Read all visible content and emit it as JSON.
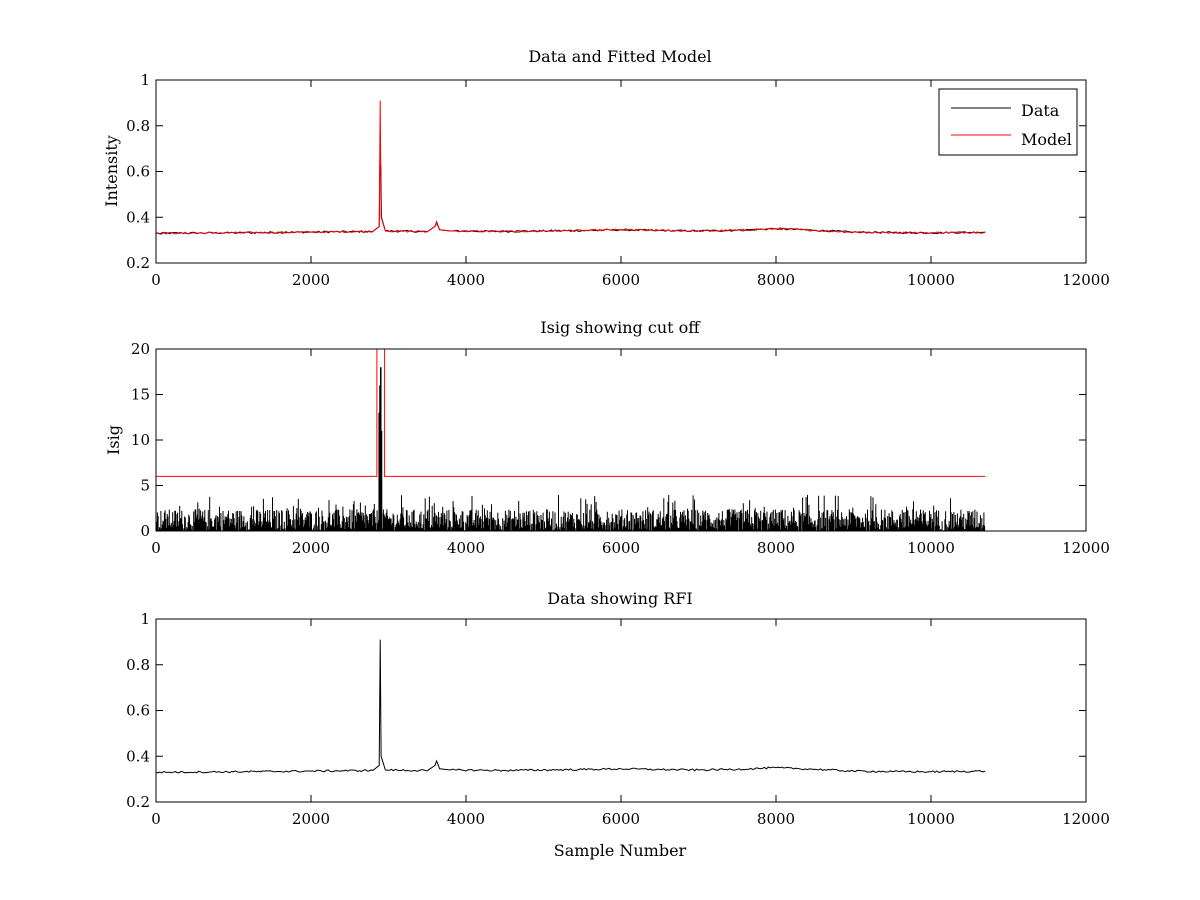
{
  "colors": {
    "data": "#000000",
    "model": "#ff0000",
    "background": "#ffffff"
  },
  "chart_data": [
    {
      "type": "line",
      "title": "Data and Fitted Model",
      "xlabel": "",
      "ylabel": "Intensity",
      "xlim": [
        0,
        12000
      ],
      "ylim": [
        0.2,
        1
      ],
      "xticks": [
        0,
        2000,
        4000,
        6000,
        8000,
        10000,
        12000
      ],
      "yticks": [
        0.2,
        0.4,
        0.6,
        0.8,
        1
      ],
      "xtick_labels": [
        "0",
        "2000",
        "4000",
        "6000",
        "8000",
        "10000",
        "12000"
      ],
      "ytick_labels": [
        "0.2",
        "0.4",
        "0.6",
        "0.8",
        "1"
      ],
      "grid": false,
      "legend": {
        "position": "top-right",
        "entries": [
          "Data",
          "Model"
        ]
      },
      "series": [
        {
          "name": "Data",
          "color": "#000000",
          "x": [
            0,
            1000,
            2000,
            2800,
            2880,
            2890,
            2895,
            2900,
            2910,
            2960,
            3500,
            3600,
            3620,
            3660,
            3800,
            4500,
            5500,
            6000,
            6500,
            7000,
            7500,
            8000,
            8500,
            9000,
            9500,
            10000,
            10700
          ],
          "y": [
            0.33,
            0.332,
            0.335,
            0.338,
            0.36,
            0.64,
            0.58,
            0.63,
            0.4,
            0.34,
            0.337,
            0.36,
            0.38,
            0.345,
            0.34,
            0.338,
            0.342,
            0.345,
            0.342,
            0.34,
            0.343,
            0.35,
            0.343,
            0.335,
            0.333,
            0.332,
            0.335
          ]
        },
        {
          "name": "Model",
          "color": "#ff0000",
          "x": [
            0,
            1000,
            2000,
            2800,
            2880,
            2893,
            2905,
            2960,
            3500,
            3600,
            3620,
            3660,
            3800,
            4500,
            5500,
            6000,
            6500,
            7000,
            7500,
            8000,
            8500,
            9000,
            9500,
            10000,
            10700
          ],
          "y": [
            0.33,
            0.332,
            0.335,
            0.338,
            0.36,
            0.91,
            0.4,
            0.34,
            0.337,
            0.36,
            0.375,
            0.345,
            0.34,
            0.338,
            0.342,
            0.345,
            0.342,
            0.34,
            0.343,
            0.35,
            0.343,
            0.335,
            0.333,
            0.332,
            0.335
          ]
        }
      ]
    },
    {
      "type": "line",
      "title": "Isig showing cut off",
      "xlabel": "",
      "ylabel": "Isig",
      "xlim": [
        0,
        12000
      ],
      "ylim": [
        0,
        20
      ],
      "xticks": [
        0,
        2000,
        4000,
        6000,
        8000,
        10000,
        12000
      ],
      "yticks": [
        0,
        5,
        10,
        15,
        20
      ],
      "xtick_labels": [
        "0",
        "2000",
        "4000",
        "6000",
        "8000",
        "10000",
        "12000"
      ],
      "ytick_labels": [
        "0",
        "5",
        "10",
        "15",
        "20"
      ],
      "grid": false,
      "series": [
        {
          "color": "#000000",
          "noise_max": 4,
          "extent": [
            0,
            10700
          ],
          "spikes": [
            {
              "x": 2880,
              "y": 13
            },
            {
              "x": 2890,
              "y": 16
            },
            {
              "x": 2900,
              "y": 18
            },
            {
              "x": 2910,
              "y": 11
            }
          ]
        },
        {
          "color": "#ff0000",
          "x": [
            0,
            2850,
            2850,
            2950,
            2950,
            10700
          ],
          "y": [
            6,
            6,
            20,
            20,
            6,
            6
          ]
        }
      ]
    },
    {
      "type": "line",
      "title": "Data showing RFI",
      "xlabel": "Sample Number",
      "ylabel": "",
      "xlim": [
        0,
        12000
      ],
      "ylim": [
        0.2,
        1
      ],
      "xticks": [
        0,
        2000,
        4000,
        6000,
        8000,
        10000,
        12000
      ],
      "yticks": [
        0.2,
        0.4,
        0.6,
        0.8,
        1
      ],
      "xtick_labels": [
        "0",
        "2000",
        "4000",
        "6000",
        "8000",
        "10000",
        "12000"
      ],
      "ytick_labels": [
        "0.2",
        "0.4",
        "0.6",
        "0.8",
        "1"
      ],
      "grid": false,
      "series": [
        {
          "color": "#000000",
          "x": [
            0,
            1000,
            2000,
            2800,
            2880,
            2893,
            2905,
            2960,
            3500,
            3600,
            3620,
            3660,
            3800,
            4500,
            5500,
            6000,
            6500,
            7000,
            7500,
            8000,
            8500,
            9000,
            9500,
            10000,
            10700
          ],
          "y": [
            0.33,
            0.332,
            0.335,
            0.338,
            0.36,
            0.91,
            0.4,
            0.34,
            0.337,
            0.36,
            0.38,
            0.345,
            0.34,
            0.338,
            0.342,
            0.345,
            0.342,
            0.34,
            0.343,
            0.35,
            0.343,
            0.335,
            0.333,
            0.332,
            0.335
          ]
        }
      ]
    }
  ]
}
